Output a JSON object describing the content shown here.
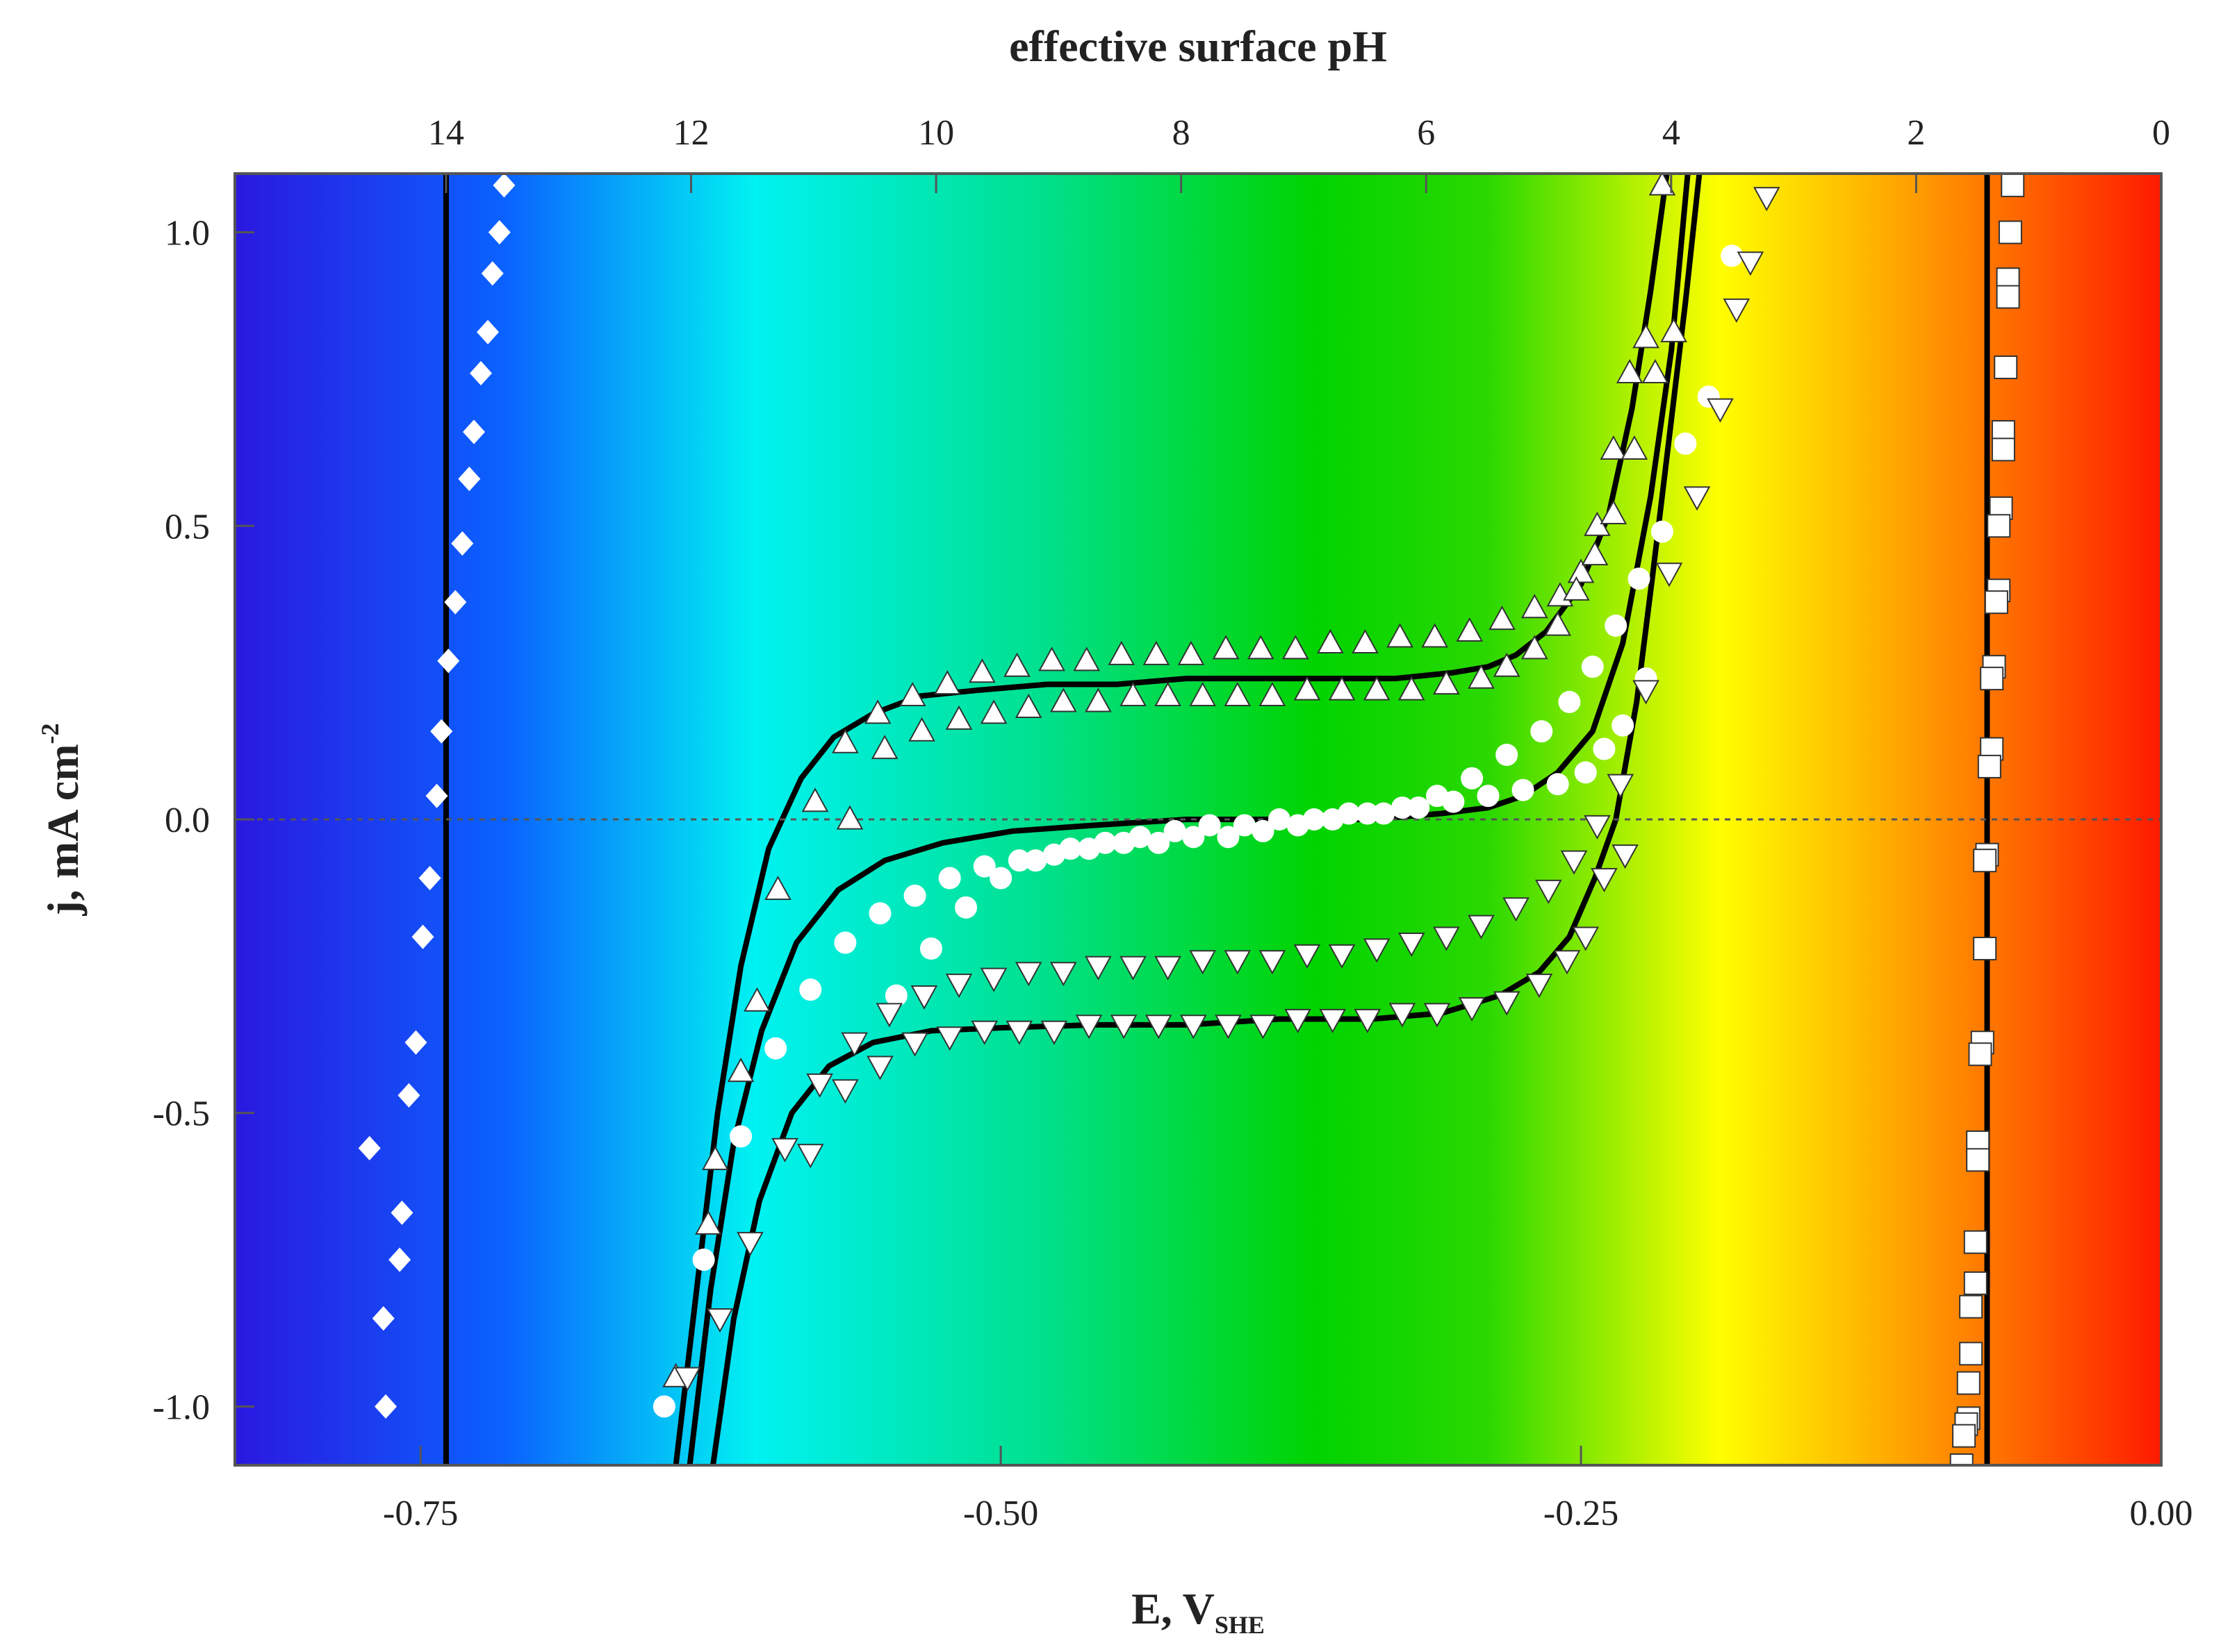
{
  "chart_data": {
    "type": "scatter",
    "title": "",
    "xlabel": "E, V",
    "xlabel_subscript": "SHE",
    "ylabel": "j, mA cm",
    "ylabel_superscript": "-2",
    "top_xlabel": "effective surface pH",
    "xlim": [
      -0.83,
      0.0
    ],
    "ylim": [
      -1.1,
      1.1
    ],
    "x_ticks": [
      "-0.75",
      "-0.50",
      "-0.25",
      "0.00"
    ],
    "x_tick_values": [
      -0.75,
      -0.5,
      -0.25,
      0.0
    ],
    "y_ticks": [
      "1.0",
      "0.5",
      "0.0",
      "-0.5",
      "-1.0"
    ],
    "y_tick_values": [
      1.0,
      0.5,
      0.0,
      -0.5,
      -1.0
    ],
    "top_ticks": [
      "14",
      "12",
      "10",
      "8",
      "6",
      "4",
      "2",
      "0"
    ],
    "top_tick_values": [
      14,
      12,
      10,
      8,
      6,
      4,
      2,
      0
    ],
    "zero_line": true,
    "background": "pH color gradient (blue at pH 14 → red at pH 0)",
    "colors": {
      "ph14": "#2b18e0",
      "ph12": "#0a62ff",
      "ph10": "#00f2f2",
      "ph8": "#00e08c",
      "ph6": "#00d400",
      "ph5": "#2ad800",
      "ph3": "#ffff00",
      "ph2": "#ffa000",
      "ph0": "#ff1a00",
      "line": "#000000",
      "marker_fill": "#ffffff",
      "marker_edge": "#333333"
    },
    "series": [
      {
        "marker": "diamond",
        "x": [
          -0.714,
          -0.716,
          -0.719,
          -0.721,
          -0.724,
          -0.727,
          -0.729,
          -0.732,
          -0.735,
          -0.738,
          -0.741,
          -0.743,
          -0.746,
          -0.749,
          -0.752,
          -0.755,
          -0.758,
          -0.759,
          -0.765,
          -0.766,
          -0.772
        ],
        "y": [
          1.08,
          1.0,
          0.93,
          0.83,
          0.76,
          0.66,
          0.58,
          0.47,
          0.37,
          0.27,
          0.15,
          0.04,
          -0.1,
          -0.2,
          -0.38,
          -0.47,
          -0.67,
          -0.75,
          -1.0,
          -0.85,
          -0.56
        ]
      },
      {
        "marker": "triangle-up",
        "x": [
          -0.64,
          -0.626,
          -0.623,
          -0.612,
          -0.605,
          -0.596,
          -0.58,
          -0.567,
          -0.553,
          -0.538,
          -0.523,
          -0.508,
          -0.493,
          -0.478,
          -0.463,
          -0.448,
          -0.433,
          -0.418,
          -0.403,
          -0.388,
          -0.373,
          -0.358,
          -0.343,
          -0.328,
          -0.313,
          -0.298,
          -0.284,
          -0.27,
          -0.259,
          -0.25,
          -0.243,
          -0.236,
          -0.229,
          -0.222,
          -0.215,
          -0.21
        ],
        "y": [
          -0.95,
          -0.69,
          -0.58,
          -0.43,
          -0.31,
          -0.12,
          0.03,
          0.13,
          0.18,
          0.21,
          0.23,
          0.25,
          0.26,
          0.27,
          0.27,
          0.28,
          0.28,
          0.28,
          0.29,
          0.29,
          0.29,
          0.3,
          0.3,
          0.31,
          0.31,
          0.32,
          0.34,
          0.36,
          0.38,
          0.42,
          0.5,
          0.63,
          0.76,
          0.82,
          1.08,
          0.83
        ]
      },
      {
        "marker": "triangle-up",
        "x": [
          -0.565,
          -0.55,
          -0.534,
          -0.518,
          -0.503,
          -0.488,
          -0.473,
          -0.458,
          -0.443,
          -0.428,
          -0.413,
          -0.398,
          -0.383,
          -0.368,
          -0.353,
          -0.338,
          -0.323,
          -0.308,
          -0.293,
          -0.282,
          -0.27,
          -0.26,
          -0.252,
          -0.244,
          -0.236,
          -0.227,
          -0.218
        ],
        "y": [
          0.0,
          0.12,
          0.15,
          0.17,
          0.18,
          0.19,
          0.2,
          0.2,
          0.21,
          0.21,
          0.21,
          0.21,
          0.21,
          0.22,
          0.22,
          0.22,
          0.22,
          0.23,
          0.24,
          0.26,
          0.29,
          0.33,
          0.39,
          0.45,
          0.52,
          0.63,
          0.76
        ]
      },
      {
        "marker": "circle",
        "x": [
          -0.645,
          -0.628,
          -0.612,
          -0.597,
          -0.582,
          -0.567,
          -0.552,
          -0.537,
          -0.522,
          -0.507,
          -0.492,
          -0.477,
          -0.462,
          -0.447,
          -0.432,
          -0.417,
          -0.402,
          -0.387,
          -0.372,
          -0.357,
          -0.342,
          -0.327,
          -0.312,
          -0.297,
          -0.282,
          -0.267,
          -0.255,
          -0.245,
          -0.235,
          -0.225,
          -0.215,
          -0.205,
          -0.195,
          -0.185
        ],
        "y": [
          -1.0,
          -0.75,
          -0.54,
          -0.39,
          -0.29,
          -0.21,
          -0.16,
          -0.13,
          -0.1,
          -0.08,
          -0.07,
          -0.06,
          -0.05,
          -0.04,
          -0.04,
          -0.03,
          -0.03,
          -0.02,
          -0.01,
          0.0,
          0.01,
          0.02,
          0.04,
          0.07,
          0.11,
          0.15,
          0.2,
          0.26,
          0.33,
          0.41,
          0.49,
          0.64,
          0.72,
          0.96
        ]
      },
      {
        "marker": "circle",
        "x": [
          -0.545,
          -0.53,
          -0.515,
          -0.5,
          -0.485,
          -0.47,
          -0.455,
          -0.44,
          -0.425,
          -0.41,
          -0.395,
          -0.38,
          -0.365,
          -0.35,
          -0.335,
          -0.32,
          -0.305,
          -0.29,
          -0.275,
          -0.26,
          -0.248,
          -0.24,
          -0.232,
          -0.222
        ],
        "y": [
          -0.3,
          -0.22,
          -0.15,
          -0.1,
          -0.07,
          -0.05,
          -0.04,
          -0.03,
          -0.02,
          -0.01,
          -0.01,
          0.0,
          0.0,
          0.01,
          0.01,
          0.02,
          0.03,
          0.04,
          0.05,
          0.06,
          0.08,
          0.12,
          0.16,
          0.24
        ]
      },
      {
        "marker": "triangle-down",
        "x": [
          -0.635,
          -0.621,
          -0.608,
          -0.593,
          -0.578,
          -0.563,
          -0.548,
          -0.533,
          -0.518,
          -0.503,
          -0.488,
          -0.473,
          -0.458,
          -0.443,
          -0.428,
          -0.413,
          -0.398,
          -0.383,
          -0.368,
          -0.353,
          -0.338,
          -0.323,
          -0.308,
          -0.293,
          -0.278,
          -0.264,
          -0.253,
          -0.243,
          -0.233,
          -0.222,
          -0.212,
          -0.2,
          -0.19,
          -0.183,
          -0.177,
          -0.17
        ],
        "y": [
          -0.95,
          -0.85,
          -0.72,
          -0.56,
          -0.45,
          -0.38,
          -0.33,
          -0.3,
          -0.28,
          -0.27,
          -0.26,
          -0.26,
          -0.25,
          -0.25,
          -0.25,
          -0.24,
          -0.24,
          -0.24,
          -0.23,
          -0.23,
          -0.22,
          -0.21,
          -0.2,
          -0.18,
          -0.15,
          -0.12,
          -0.07,
          -0.01,
          0.06,
          0.22,
          0.42,
          0.55,
          0.7,
          0.87,
          0.95,
          1.06
        ]
      },
      {
        "marker": "triangle-down",
        "x": [
          -0.582,
          -0.567,
          -0.552,
          -0.537,
          -0.522,
          -0.507,
          -0.492,
          -0.477,
          -0.462,
          -0.447,
          -0.432,
          -0.417,
          -0.402,
          -0.387,
          -0.372,
          -0.357,
          -0.342,
          -0.327,
          -0.312,
          -0.297,
          -0.282,
          -0.268,
          -0.256,
          -0.248,
          -0.24,
          -0.231
        ],
        "y": [
          -0.57,
          -0.46,
          -0.42,
          -0.38,
          -0.37,
          -0.36,
          -0.36,
          -0.36,
          -0.35,
          -0.35,
          -0.35,
          -0.35,
          -0.35,
          -0.35,
          -0.34,
          -0.34,
          -0.34,
          -0.33,
          -0.33,
          -0.32,
          -0.31,
          -0.28,
          -0.24,
          -0.2,
          -0.1,
          -0.06
        ]
      },
      {
        "marker": "square",
        "x": [
          -0.064,
          -0.065,
          -0.066,
          -0.066,
          -0.067,
          -0.068,
          -0.068,
          -0.069,
          -0.07,
          -0.07,
          -0.071,
          -0.072,
          -0.073,
          -0.073,
          -0.074,
          -0.075,
          -0.076,
          -0.076,
          -0.077,
          -0.078,
          -0.079,
          -0.079,
          -0.08,
          -0.08,
          -0.082,
          -0.082,
          -0.083,
          -0.083,
          -0.084,
          -0.085,
          -0.086
        ],
        "y": [
          1.08,
          1.0,
          0.92,
          0.89,
          0.77,
          0.66,
          0.63,
          0.53,
          0.5,
          0.39,
          0.37,
          0.26,
          0.24,
          0.12,
          0.09,
          -0.06,
          -0.07,
          -0.22,
          -0.38,
          -0.4,
          -0.55,
          -0.58,
          -0.72,
          -0.79,
          -0.83,
          -0.91,
          -0.96,
          -1.02,
          -1.03,
          -1.05,
          -1.1
        ]
      }
    ],
    "model_curves": [
      {
        "type": "vertical",
        "x": -0.739
      },
      {
        "type": "vertical",
        "x": -0.075
      },
      {
        "type": "curve",
        "x": [
          -0.64,
          -0.631,
          -0.622,
          -0.612,
          -0.6,
          -0.586,
          -0.572,
          -0.555,
          -0.535,
          -0.51,
          -0.48,
          -0.45,
          -0.42,
          -0.39,
          -0.36,
          -0.33,
          -0.305,
          -0.29,
          -0.278,
          -0.265,
          -0.25,
          -0.238,
          -0.228,
          -0.22,
          -0.213
        ],
        "y": [
          -1.1,
          -0.8,
          -0.5,
          -0.25,
          -0.05,
          0.07,
          0.14,
          0.18,
          0.21,
          0.22,
          0.23,
          0.23,
          0.24,
          0.24,
          0.24,
          0.24,
          0.25,
          0.26,
          0.28,
          0.32,
          0.4,
          0.52,
          0.7,
          0.9,
          1.1
        ]
      },
      {
        "type": "curve",
        "x": [
          -0.634,
          -0.625,
          -0.615,
          -0.603,
          -0.588,
          -0.57,
          -0.55,
          -0.525,
          -0.495,
          -0.46,
          -0.42,
          -0.38,
          -0.34,
          -0.31,
          -0.29,
          -0.275,
          -0.26,
          -0.245,
          -0.232,
          -0.22,
          -0.211,
          -0.204
        ],
        "y": [
          -1.1,
          -0.8,
          -0.55,
          -0.36,
          -0.21,
          -0.12,
          -0.07,
          -0.04,
          -0.02,
          -0.01,
          0.0,
          0.0,
          0.0,
          0.01,
          0.02,
          0.04,
          0.08,
          0.15,
          0.3,
          0.55,
          0.8,
          1.1
        ]
      },
      {
        "type": "curve",
        "x": [
          -0.624,
          -0.615,
          -0.604,
          -0.59,
          -0.574,
          -0.555,
          -0.53,
          -0.5,
          -0.46,
          -0.42,
          -0.38,
          -0.34,
          -0.31,
          -0.285,
          -0.268,
          -0.255,
          -0.244,
          -0.235,
          -0.226,
          -0.219,
          -0.212,
          -0.205,
          -0.199
        ],
        "y": [
          -1.1,
          -0.85,
          -0.65,
          -0.5,
          -0.42,
          -0.38,
          -0.36,
          -0.355,
          -0.35,
          -0.35,
          -0.34,
          -0.34,
          -0.33,
          -0.3,
          -0.26,
          -0.2,
          -0.1,
          0.0,
          0.2,
          0.42,
          0.65,
          0.88,
          1.1
        ]
      }
    ]
  }
}
